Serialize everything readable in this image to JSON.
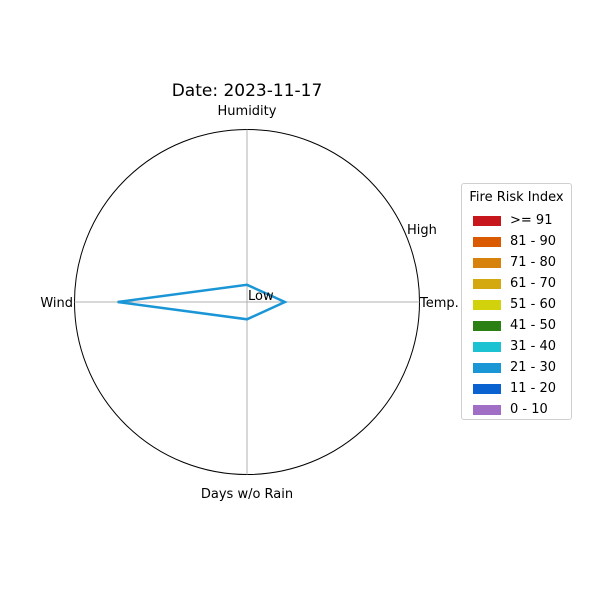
{
  "chart_data": {
    "type": "radar",
    "title": "Date: 2023-11-17",
    "axes": [
      "Temp.",
      "Humidity",
      "Wind",
      "Days w/o Rain"
    ],
    "scale_labels": {
      "inner": "Low",
      "outer": "High"
    },
    "range": [
      0,
      1
    ],
    "series": [
      {
        "values": [
          0.22,
          0.1,
          0.75,
          0.1
        ],
        "color": "#1a96d6"
      }
    ],
    "legend": {
      "title": "Fire Risk Index",
      "placement": "right",
      "items": [
        {
          "label": ">= 91",
          "color": "#c8161d"
        },
        {
          "label": "81 - 90",
          "color": "#d95a00"
        },
        {
          "label": "71 - 80",
          "color": "#d6820b"
        },
        {
          "label": "61 - 70",
          "color": "#d4a90f"
        },
        {
          "label": "51 - 60",
          "color": "#d2d20c"
        },
        {
          "label": "41 - 50",
          "color": "#2a8012"
        },
        {
          "label": "31 - 40",
          "color": "#1cc2d2"
        },
        {
          "label": "21 - 30",
          "color": "#1a96d6"
        },
        {
          "label": "11 - 20",
          "color": "#0a62d1"
        },
        {
          "label": "0 - 10",
          "color": "#a06ec4"
        }
      ]
    }
  }
}
